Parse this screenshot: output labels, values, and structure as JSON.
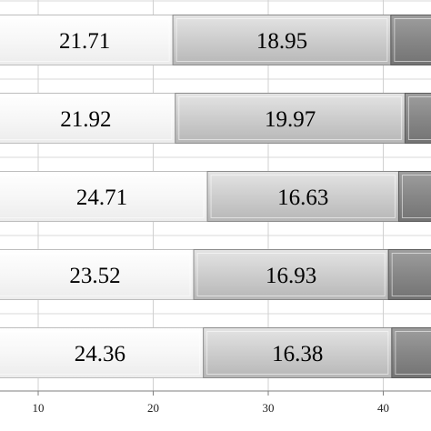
{
  "chart_data": {
    "type": "bar",
    "orientation": "horizontal",
    "stacked": true,
    "categories": [
      "",
      "",
      "",
      "",
      ""
    ],
    "series": [
      {
        "values": [
          21.71,
          21.92,
          24.71,
          23.52,
          24.36
        ],
        "color": "#ffffff"
      },
      {
        "values": [
          18.95,
          19.97,
          16.63,
          16.93,
          16.38
        ],
        "color": "#c8c8c8"
      },
      {
        "values": [
          null,
          null,
          null,
          null,
          null
        ],
        "color": "#8a8a8a"
      }
    ],
    "xlim": [
      4.5,
      44.5
    ],
    "xticks": [
      10,
      20,
      30,
      40
    ],
    "grid": true,
    "xlabel": "",
    "ylabel": "",
    "title": ""
  }
}
